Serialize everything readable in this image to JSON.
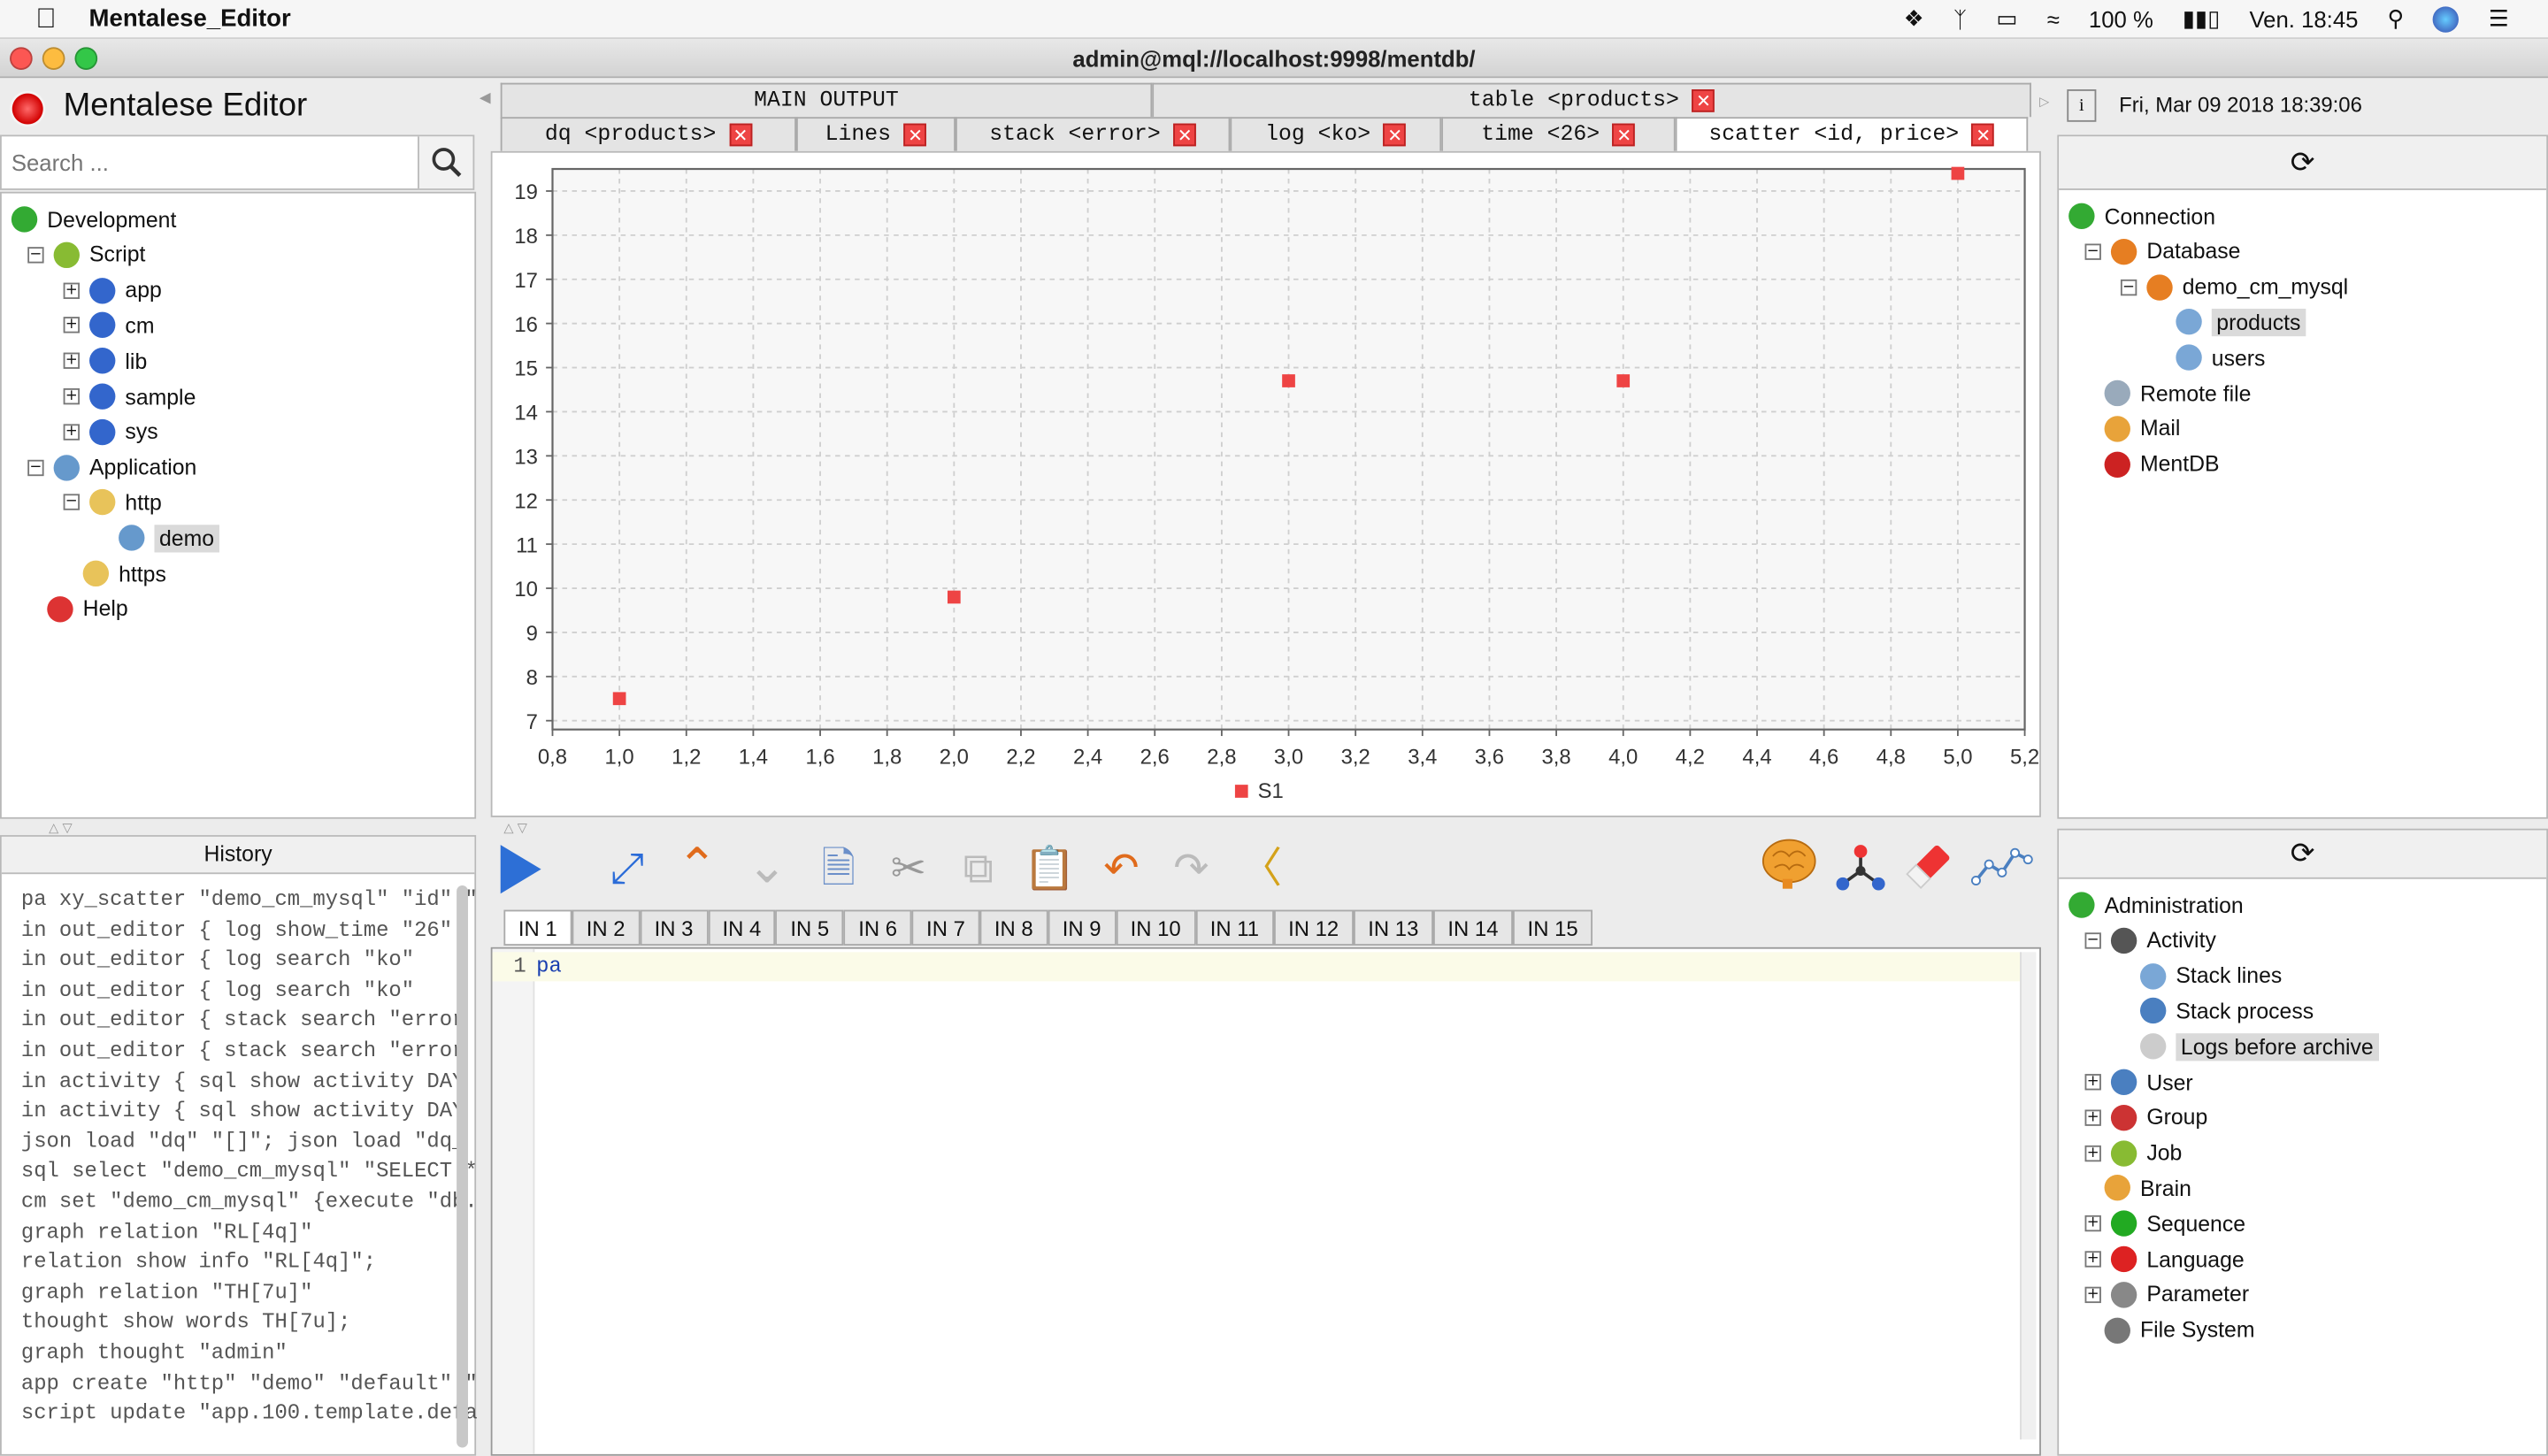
{
  "menubar": {
    "app": "Mentalese_Editor",
    "battery": "100 %",
    "clock": "Ven. 18:45"
  },
  "window": {
    "title": "admin@mql://localhost:9998/mentdb/"
  },
  "header": {
    "title": "Mentalese Editor"
  },
  "search": {
    "placeholder": "Search ..."
  },
  "left_tree": [
    {
      "label": "Development",
      "depth": 0,
      "exp": "",
      "icon": "#3a3"
    },
    {
      "label": "Script",
      "depth": 1,
      "exp": "−",
      "icon": "#8b3"
    },
    {
      "label": "app",
      "depth": 2,
      "exp": "+",
      "icon": "#36c"
    },
    {
      "label": "cm",
      "depth": 2,
      "exp": "+",
      "icon": "#36c"
    },
    {
      "label": "lib",
      "depth": 2,
      "exp": "+",
      "icon": "#36c"
    },
    {
      "label": "sample",
      "depth": 2,
      "exp": "+",
      "icon": "#36c"
    },
    {
      "label": "sys",
      "depth": 2,
      "exp": "+",
      "icon": "#36c"
    },
    {
      "label": "Application",
      "depth": 1,
      "exp": "−",
      "icon": "#69c"
    },
    {
      "label": "http",
      "depth": 2,
      "exp": "−",
      "icon": "#e8c35a"
    },
    {
      "label": "demo",
      "depth": 3,
      "exp": "",
      "icon": "#69c",
      "selected": true
    },
    {
      "label": "https",
      "depth": 2,
      "exp": "",
      "icon": "#e8c35a"
    },
    {
      "label": "Help",
      "depth": 1,
      "exp": "",
      "icon": "#d33"
    }
  ],
  "history": {
    "title": "History",
    "lines": [
      "pa xy_scatter \"demo_cm_mysql\" \"id\" \"",
      "in out_editor {  log show_time \"26\"",
      "in out_editor {  log search \"ko\"   ",
      "in out_editor {  log search \"ko\"   ",
      "in out_editor {  stack search \"error",
      "in out_editor {  stack search \"error",
      "in activity {  sql show activity DAY",
      "in activity {  sql show activity DAY",
      "json load \"dq\" \"[]\";  json load \"dq_",
      "sql select \"demo_cm_mysql\" \"SELECT *",
      "cm set \"demo_cm_mysql\" {execute \"db.",
      "graph relation \"RL[4q]\"",
      "relation show info \"RL[4q]\";",
      "graph relation \"TH[7u]\"",
      "thought show words TH[7u];",
      "graph thought \"admin\"",
      "app create \"http\" \"demo\" \"default\" \"",
      "script update \"app.100.template.defa"
    ]
  },
  "output_tabs": {
    "row1": [
      {
        "label": "MAIN OUTPUT",
        "close": false
      },
      {
        "label": "table <products>",
        "close": true
      }
    ],
    "row2": [
      {
        "label": "dq <products>"
      },
      {
        "label": "Lines"
      },
      {
        "label": "stack <error>"
      },
      {
        "label": "log <ko>"
      },
      {
        "label": "time <26>"
      },
      {
        "label": "scatter <id, price>",
        "active": true
      }
    ]
  },
  "chart_data": {
    "type": "scatter",
    "title": "",
    "xlabel": "",
    "ylabel": "",
    "xlim": [
      0.8,
      5.2
    ],
    "ylim": [
      6.8,
      19.5
    ],
    "xticks": [
      "0,8",
      "1,0",
      "1,2",
      "1,4",
      "1,6",
      "1,8",
      "2,0",
      "2,2",
      "2,4",
      "2,6",
      "2,8",
      "3,0",
      "3,2",
      "3,4",
      "3,6",
      "3,8",
      "4,0",
      "4,2",
      "4,4",
      "4,6",
      "4,8",
      "5,0",
      "5,2"
    ],
    "xtick_values": [
      0.8,
      1.0,
      1.2,
      1.4,
      1.6,
      1.8,
      2.0,
      2.2,
      2.4,
      2.6,
      2.8,
      3.0,
      3.2,
      3.4,
      3.6,
      3.8,
      4.0,
      4.2,
      4.4,
      4.6,
      4.8,
      5.0,
      5.2
    ],
    "yticks": [
      7,
      8,
      9,
      10,
      11,
      12,
      13,
      14,
      15,
      16,
      17,
      18,
      19
    ],
    "grid": true,
    "legend": "bottom",
    "series": [
      {
        "name": "S1",
        "color": "#ee4444",
        "x": [
          1,
          2,
          3,
          4,
          5
        ],
        "y": [
          7.5,
          9.8,
          14.7,
          14.7,
          19.4
        ]
      }
    ]
  },
  "input_tabs": [
    "IN 1",
    "IN 2",
    "IN 3",
    "IN 4",
    "IN 5",
    "IN 6",
    "IN 7",
    "IN 8",
    "IN 9",
    "IN 10",
    "IN 11",
    "IN 12",
    "IN 13",
    "IN 14",
    "IN 15"
  ],
  "editor": {
    "line_no": "1",
    "code": "pa"
  },
  "right": {
    "date": "Fri, Mar 09 2018 18:39:06",
    "conn_tree": [
      {
        "label": "Connection",
        "depth": 0,
        "exp": "",
        "icon": "#3a3"
      },
      {
        "label": "Database",
        "depth": 1,
        "exp": "−",
        "icon": "#e67e22"
      },
      {
        "label": "demo_cm_mysql",
        "depth": 2,
        "exp": "−",
        "icon": "#e67e22"
      },
      {
        "label": "products",
        "depth": 3,
        "exp": "",
        "icon": "#7aa7d6",
        "selected": true
      },
      {
        "label": "users",
        "depth": 3,
        "exp": "",
        "icon": "#7aa7d6"
      },
      {
        "label": "Remote file",
        "depth": 1,
        "exp": "",
        "icon": "#9ab"
      },
      {
        "label": "Mail",
        "depth": 1,
        "exp": "",
        "icon": "#e8a33a"
      },
      {
        "label": "MentDB",
        "depth": 1,
        "exp": "",
        "icon": "#c22"
      }
    ],
    "admin_tree": [
      {
        "label": "Administration",
        "depth": 0,
        "exp": "",
        "icon": "#3a3"
      },
      {
        "label": "Activity",
        "depth": 1,
        "exp": "−",
        "icon": "#555"
      },
      {
        "label": "Stack lines",
        "depth": 2,
        "exp": "",
        "icon": "#7aa7d6"
      },
      {
        "label": "Stack process",
        "depth": 2,
        "exp": "",
        "icon": "#4a7fc0"
      },
      {
        "label": "Logs before archive",
        "depth": 2,
        "exp": "",
        "icon": "#ccc",
        "selected": true
      },
      {
        "label": "User",
        "depth": 1,
        "exp": "+",
        "icon": "#4a7fc0"
      },
      {
        "label": "Group",
        "depth": 1,
        "exp": "+",
        "icon": "#c33"
      },
      {
        "label": "Job",
        "depth": 1,
        "exp": "+",
        "icon": "#8b3"
      },
      {
        "label": "Brain",
        "depth": 1,
        "exp": "",
        "icon": "#e8a33a"
      },
      {
        "label": "Sequence",
        "depth": 1,
        "exp": "+",
        "icon": "#2a2"
      },
      {
        "label": "Language",
        "depth": 1,
        "exp": "+",
        "icon": "#d22"
      },
      {
        "label": "Parameter",
        "depth": 1,
        "exp": "+",
        "icon": "#888"
      },
      {
        "label": "File System",
        "depth": 1,
        "exp": "",
        "icon": "#777"
      }
    ]
  }
}
